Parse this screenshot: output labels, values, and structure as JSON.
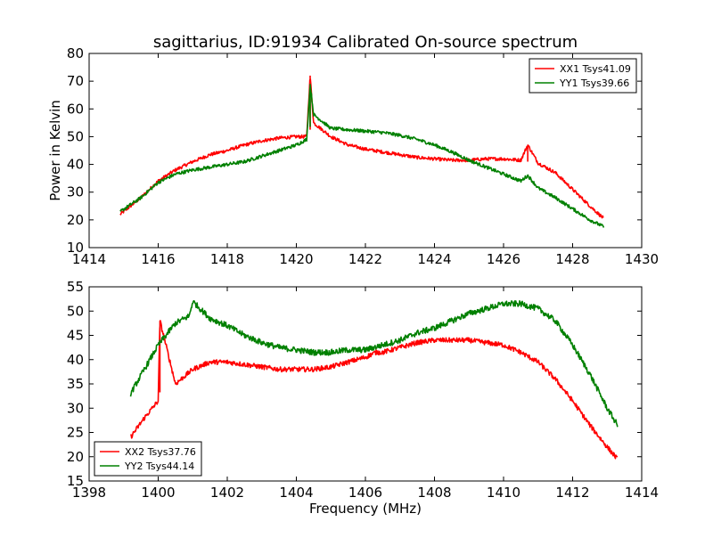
{
  "figure": {
    "title": "sagittarius, ID:91934 Calibrated On-source spectrum",
    "ylabel": "Power in Kelvin",
    "xlabel": "Frequency (MHz)"
  },
  "chart_data": [
    {
      "type": "line",
      "title": "sagittarius, ID:91934 Calibrated On-source spectrum",
      "xlabel": "",
      "ylabel": "Power in Kelvin",
      "xlim": [
        1414,
        1430
      ],
      "ylim": [
        10,
        80
      ],
      "xticks": [
        1414,
        1416,
        1418,
        1420,
        1422,
        1424,
        1426,
        1428,
        1430
      ],
      "yticks": [
        10,
        20,
        30,
        40,
        50,
        60,
        70,
        80
      ],
      "legend_position": "top-right",
      "grid": false,
      "series": [
        {
          "name": "XX1 Tsys41.09",
          "color": "#ff0000",
          "x": [
            1414.9,
            1415.5,
            1416.0,
            1416.5,
            1417.0,
            1417.5,
            1418.0,
            1418.5,
            1419.0,
            1419.5,
            1420.0,
            1420.3,
            1420.4,
            1420.5,
            1420.7,
            1421.0,
            1421.5,
            1422.0,
            1422.5,
            1423.0,
            1423.5,
            1424.0,
            1424.5,
            1425.0,
            1425.5,
            1426.0,
            1426.5,
            1426.7,
            1427.0,
            1427.5,
            1428.0,
            1428.5,
            1428.9
          ],
          "y": [
            22,
            28,
            34,
            38,
            41,
            43.5,
            45,
            47,
            48.5,
            49.5,
            50,
            50,
            72,
            55,
            53,
            50,
            47,
            45.5,
            44.5,
            43.5,
            42.5,
            42,
            41.5,
            41.5,
            42,
            42,
            41.5,
            47,
            40.5,
            37,
            31,
            25,
            20.5
          ],
          "noise": 0.6
        },
        {
          "name": "YY1 Tsys39.66",
          "color": "#008000",
          "x": [
            1414.9,
            1415.5,
            1416.0,
            1416.5,
            1417.0,
            1417.5,
            1418.0,
            1418.5,
            1419.0,
            1419.5,
            1420.0,
            1420.3,
            1420.4,
            1420.5,
            1420.7,
            1421.0,
            1421.5,
            1422.0,
            1422.5,
            1423.0,
            1423.5,
            1424.0,
            1424.5,
            1425.0,
            1425.5,
            1426.0,
            1426.5,
            1426.7,
            1427.0,
            1427.5,
            1428.0,
            1428.5,
            1428.9
          ],
          "y": [
            23,
            28,
            33.5,
            36.5,
            38,
            39,
            40,
            41,
            43,
            45,
            47,
            49,
            69,
            58,
            56,
            53,
            52.5,
            52,
            51.5,
            50.5,
            49,
            47,
            44.5,
            41.5,
            39,
            36.5,
            34,
            36,
            31.5,
            28,
            24,
            20,
            17.5
          ],
          "noise": 0.6
        }
      ]
    },
    {
      "type": "line",
      "title": "",
      "xlabel": "Frequency (MHz)",
      "ylabel": "",
      "xlim": [
        1398,
        1414
      ],
      "ylim": [
        15,
        55
      ],
      "xticks": [
        1398,
        1400,
        1402,
        1404,
        1406,
        1408,
        1410,
        1412,
        1414
      ],
      "yticks": [
        15,
        20,
        25,
        30,
        35,
        40,
        45,
        50,
        55
      ],
      "legend_position": "bottom-left",
      "grid": false,
      "series": [
        {
          "name": "XX2 Tsys37.76",
          "color": "#ff0000",
          "x": [
            1399.2,
            1399.6,
            1400.0,
            1400.05,
            1400.5,
            1401.0,
            1401.5,
            1402.0,
            1402.5,
            1403.0,
            1403.5,
            1404.0,
            1404.5,
            1405.0,
            1405.5,
            1406.0,
            1406.3,
            1406.5,
            1407.0,
            1407.5,
            1408.0,
            1408.5,
            1409.0,
            1409.5,
            1410.0,
            1410.5,
            1411.0,
            1411.5,
            1412.0,
            1412.5,
            1413.0,
            1413.3
          ],
          "y": [
            24,
            28,
            31.5,
            48,
            35,
            38,
            39.5,
            39.5,
            39,
            38.5,
            38,
            38,
            38,
            38.5,
            39.5,
            40.5,
            41.5,
            41.5,
            42.5,
            43.5,
            44,
            44,
            44,
            43.5,
            43,
            41.5,
            39.5,
            36,
            31.5,
            26.5,
            22,
            19.5
          ],
          "noise": 0.5
        },
        {
          "name": "YY2 Tsys44.14",
          "color": "#008000",
          "x": [
            1399.2,
            1399.6,
            1400.0,
            1400.5,
            1400.9,
            1401.0,
            1401.5,
            1402.0,
            1402.5,
            1403.0,
            1403.5,
            1404.0,
            1404.5,
            1405.0,
            1405.5,
            1406.0,
            1406.5,
            1407.0,
            1407.5,
            1408.0,
            1408.5,
            1409.0,
            1409.5,
            1410.0,
            1410.5,
            1411.0,
            1411.5,
            1412.0,
            1412.5,
            1413.0,
            1413.3
          ],
          "y": [
            33,
            38,
            43,
            47.5,
            49,
            52,
            48.5,
            47,
            45,
            43.5,
            42.5,
            42,
            41.5,
            41.5,
            42,
            42,
            43,
            44,
            45.5,
            46.5,
            48,
            49.5,
            50.5,
            51.5,
            51.5,
            50.5,
            48,
            43,
            37,
            30,
            26.5
          ],
          "noise": 0.6
        }
      ]
    }
  ]
}
